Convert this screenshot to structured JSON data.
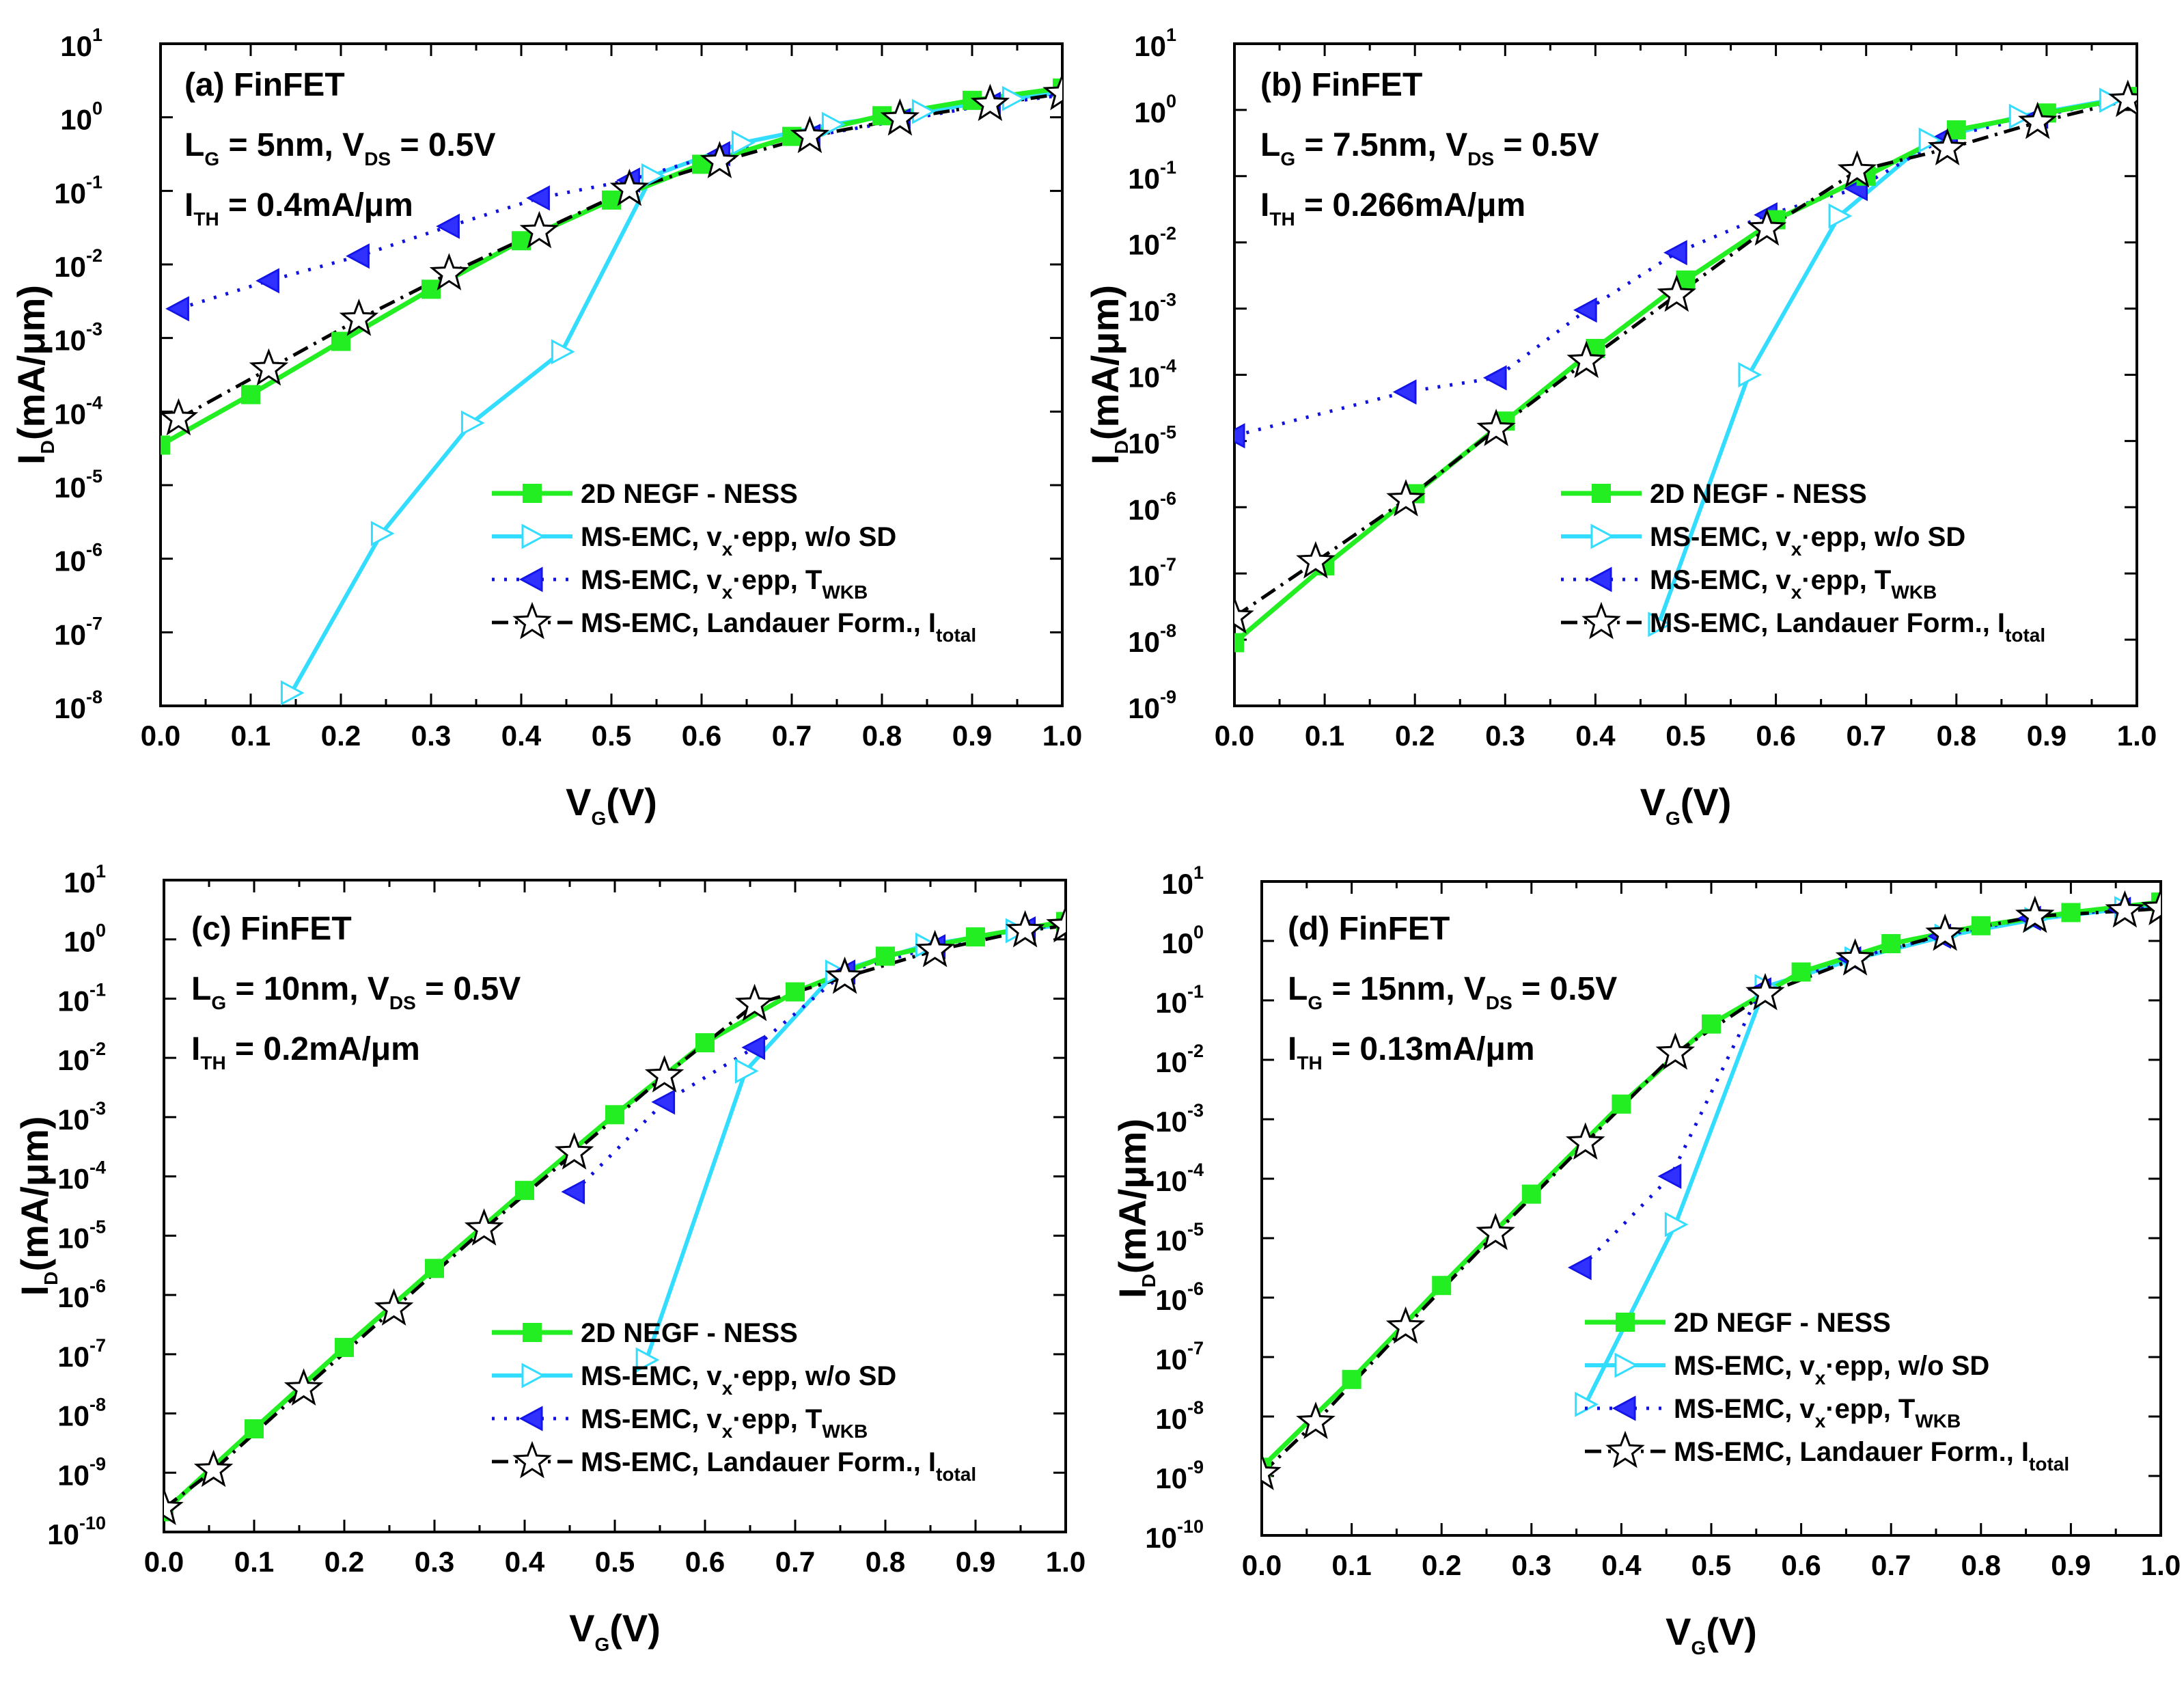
{
  "colors": {
    "negf": "#22ee22",
    "negf_marker": "#22ee22",
    "wosd": "#33ddff",
    "twkb": "#1111dd",
    "twkb_fill": "#1a1aff",
    "total": "#000000"
  },
  "common": {
    "x_label_main": "V",
    "x_label_sub": "G",
    "x_label_end": "(V)",
    "y_label_main": "I",
    "y_label_sub": "D",
    "y_label_end": "(mA/μm)",
    "x_ticks": [
      "0.0",
      "0.1",
      "0.2",
      "0.3",
      "0.4",
      "0.5",
      "0.6",
      "0.7",
      "0.8",
      "0.9",
      "1.0"
    ],
    "legend": [
      {
        "text": "2D NEGF - NESS",
        "sub": "",
        "tail": "",
        "sub2": "",
        "tail2": ""
      },
      {
        "text": "MS-EMC, v",
        "sub": "x",
        "tail": "·epp, w/o SD",
        "sub2": "",
        "tail2": ""
      },
      {
        "text": "MS-EMC, v",
        "sub": "x",
        "tail": "·epp, T",
        "sub2": "WKB",
        "tail2": ""
      },
      {
        "text": "MS-EMC, Landauer Form., I",
        "sub": "total",
        "tail": "",
        "sub2": "",
        "tail2": ""
      }
    ]
  },
  "chart_data": [
    {
      "type": "line",
      "title_line1": "(a) FinFET",
      "title_line2": {
        "a": "L",
        "a_sub": "G",
        "b": " = 5nm, V",
        "b_sub": "DS",
        "c": " = 0.5V"
      },
      "title_line3": {
        "a": "I",
        "a_sub": "TH",
        "b": " = 0.4mA/μm"
      },
      "xlim": [
        0,
        1
      ],
      "ylim_exp": [
        -8,
        1
      ],
      "y_ticks": [
        {
          "base": "10",
          "exp": "1"
        },
        {
          "base": "10",
          "exp": "0"
        },
        {
          "base": "10",
          "exp": "-1"
        },
        {
          "base": "10",
          "exp": "-2"
        },
        {
          "base": "10",
          "exp": "-3"
        },
        {
          "base": "10",
          "exp": "-4"
        },
        {
          "base": "10",
          "exp": "-5"
        },
        {
          "base": "10",
          "exp": "-6"
        },
        {
          "base": "10",
          "exp": "-7"
        },
        {
          "base": "10",
          "exp": "-8"
        }
      ],
      "series": [
        {
          "name": "2D NEGF - NESS",
          "x": [
            0,
            0.1,
            0.2,
            0.3,
            0.4,
            0.5,
            0.6,
            0.7,
            0.8,
            0.9,
            1.0
          ],
          "y": [
            3.5e-05,
            0.00017,
            0.0009,
            0.0046,
            0.021,
            0.075,
            0.23,
            0.55,
            1.05,
            1.7,
            2.5
          ]
        },
        {
          "name": "MS-EMC, vx·epp, w/o SD",
          "x": [
            0.145,
            0.245,
            0.345,
            0.445,
            0.545,
            0.645,
            0.745,
            0.845,
            0.945,
            1.0
          ],
          "y": [
            1.5e-08,
            2.2e-06,
            7e-05,
            0.00065,
            0.16,
            0.45,
            0.8,
            1.2,
            1.8,
            2.2
          ]
        },
        {
          "name": "MS-EMC, vx·epp, TWKB",
          "x": [
            0.02,
            0.12,
            0.22,
            0.32,
            0.42,
            0.52,
            0.62,
            0.72,
            0.82,
            0.92,
            1.0
          ],
          "y": [
            0.0025,
            0.006,
            0.013,
            0.033,
            0.08,
            0.14,
            0.32,
            0.55,
            0.9,
            1.5,
            2.0
          ]
        },
        {
          "name": "MS-EMC, Landauer Form., Itotal",
          "x": [
            0.02,
            0.12,
            0.22,
            0.32,
            0.42,
            0.52,
            0.62,
            0.72,
            0.82,
            0.92,
            1.0
          ],
          "y": [
            8e-05,
            0.00038,
            0.0018,
            0.0075,
            0.028,
            0.105,
            0.25,
            0.55,
            0.95,
            1.5,
            2.1
          ]
        }
      ]
    },
    {
      "type": "line",
      "title_line1": "(b) FinFET",
      "title_line2": {
        "a": "L",
        "a_sub": "G",
        "b": " = 7.5nm, V",
        "b_sub": "DS",
        "c": " = 0.5V"
      },
      "title_line3": {
        "a": "I",
        "a_sub": "TH",
        "b": " = 0.266mA/μm"
      },
      "xlim": [
        0,
        1
      ],
      "ylim_exp": [
        -9,
        1
      ],
      "y_ticks": [
        {
          "base": "10",
          "exp": "1"
        },
        {
          "base": "10",
          "exp": "0"
        },
        {
          "base": "10",
          "exp": "-1"
        },
        {
          "base": "10",
          "exp": "-2"
        },
        {
          "base": "10",
          "exp": "-3"
        },
        {
          "base": "10",
          "exp": "-4"
        },
        {
          "base": "10",
          "exp": "-5"
        },
        {
          "base": "10",
          "exp": "-6"
        },
        {
          "base": "10",
          "exp": "-7"
        },
        {
          "base": "10",
          "exp": "-8"
        },
        {
          "base": "10",
          "exp": "-9"
        }
      ],
      "series": [
        {
          "name": "2D NEGF - NESS",
          "x": [
            0,
            0.1,
            0.2,
            0.3,
            0.4,
            0.5,
            0.6,
            0.7,
            0.8,
            0.9,
            1.0
          ],
          "y": [
            9e-09,
            1.3e-07,
            1.6e-06,
            2e-05,
            0.00025,
            0.0027,
            0.022,
            0.1,
            0.5,
            0.9,
            1.6
          ]
        },
        {
          "name": "MS-EMC, vx·epp, w/o SD",
          "x": [
            0.47,
            0.57,
            0.67,
            0.77,
            0.87,
            0.97,
            1.0
          ],
          "y": [
            1.7e-08,
            0.0001,
            0.025,
            0.35,
            0.8,
            1.4,
            1.6
          ]
        },
        {
          "name": "MS-EMC, vx·epp, TWKB",
          "x": [
            0,
            0.19,
            0.29,
            0.39,
            0.49,
            0.59,
            0.69,
            0.79,
            0.89,
            0.99
          ],
          "y": [
            1.2e-05,
            5.5e-05,
            9e-05,
            0.00095,
            0.007,
            0.026,
            0.065,
            0.4,
            0.8,
            1.5
          ]
        },
        {
          "name": "MS-EMC, Landauer Form., Itotal",
          "x": [
            0,
            0.09,
            0.19,
            0.29,
            0.39,
            0.49,
            0.59,
            0.69,
            0.79,
            0.89,
            0.99
          ],
          "y": [
            2.2e-08,
            1.5e-07,
            1.3e-06,
            1.5e-05,
            0.00016,
            0.0016,
            0.016,
            0.12,
            0.26,
            0.65,
            1.4
          ]
        }
      ]
    },
    {
      "type": "line",
      "title_line1": "(c) FinFET",
      "title_line2": {
        "a": "L",
        "a_sub": "G",
        "b": " = 10nm, V",
        "b_sub": "DS",
        "c": " = 0.5V"
      },
      "title_line3": {
        "a": "I",
        "a_sub": "TH",
        "b": " = 0.2mA/μm"
      },
      "xlim": [
        0,
        1
      ],
      "ylim_exp": [
        -10,
        1
      ],
      "y_ticks": [
        {
          "base": "10",
          "exp": "1"
        },
        {
          "base": "10",
          "exp": "0"
        },
        {
          "base": "10",
          "exp": "-1"
        },
        {
          "base": "10",
          "exp": "-2"
        },
        {
          "base": "10",
          "exp": "-3"
        },
        {
          "base": "10",
          "exp": "-4"
        },
        {
          "base": "10",
          "exp": "-5"
        },
        {
          "base": "10",
          "exp": "-6"
        },
        {
          "base": "10",
          "exp": "-7"
        },
        {
          "base": "10",
          "exp": "-8"
        },
        {
          "base": "10",
          "exp": "-9"
        },
        {
          "base": "10",
          "exp": "-10"
        }
      ],
      "series": [
        {
          "name": "2D NEGF - NESS",
          "x": [
            0,
            0.1,
            0.2,
            0.3,
            0.4,
            0.5,
            0.6,
            0.7,
            0.8,
            0.9,
            1.0
          ],
          "y": [
            2.2e-10,
            5.5e-09,
            1.3e-07,
            2.8e-06,
            5.8e-05,
            0.0011,
            0.018,
            0.13,
            0.52,
            1.1,
            2.0
          ]
        },
        {
          "name": "MS-EMC, vx·epp, w/o SD",
          "x": [
            0.535,
            0.645,
            0.745,
            0.845,
            0.945,
            1.0
          ],
          "y": [
            8e-08,
            0.006,
            0.28,
            0.8,
            1.4,
            1.8
          ]
        },
        {
          "name": "MS-EMC, vx·epp, TWKB",
          "x": [
            0.455,
            0.555,
            0.655,
            0.755,
            0.855,
            0.955,
            1.0
          ],
          "y": [
            5.5e-05,
            0.0018,
            0.015,
            0.28,
            0.75,
            1.5,
            1.8
          ]
        },
        {
          "name": "MS-EMC, Landauer Form., Itotal",
          "x": [
            0,
            0.055,
            0.155,
            0.255,
            0.355,
            0.455,
            0.555,
            0.655,
            0.755,
            0.855,
            0.955,
            1.0
          ],
          "y": [
            2.5e-10,
            1.1e-09,
            2.6e-08,
            5.8e-07,
            1.3e-05,
            0.00025,
            0.005,
            0.08,
            0.23,
            0.65,
            1.4,
            1.7
          ]
        }
      ]
    },
    {
      "type": "line",
      "title_line1": "(d) FinFET",
      "title_line2": {
        "a": "L",
        "a_sub": "G",
        "b": " = 15nm, V",
        "b_sub": "DS",
        "c": " = 0.5V"
      },
      "title_line3": {
        "a": "I",
        "a_sub": "TH",
        "b": " = 0.13mA/μm"
      },
      "xlim": [
        0,
        1
      ],
      "ylim_exp": [
        -10,
        1
      ],
      "y_ticks": [
        {
          "base": "10",
          "exp": "1"
        },
        {
          "base": "10",
          "exp": "0"
        },
        {
          "base": "10",
          "exp": "-1"
        },
        {
          "base": "10",
          "exp": "-2"
        },
        {
          "base": "10",
          "exp": "-3"
        },
        {
          "base": "10",
          "exp": "-4"
        },
        {
          "base": "10",
          "exp": "-5"
        },
        {
          "base": "10",
          "exp": "-6"
        },
        {
          "base": "10",
          "exp": "-7"
        },
        {
          "base": "10",
          "exp": "-8"
        },
        {
          "base": "10",
          "exp": "-9"
        },
        {
          "base": "10",
          "exp": "-10"
        }
      ],
      "series": [
        {
          "name": "2D NEGF - NESS",
          "x": [
            0,
            0.1,
            0.2,
            0.3,
            0.4,
            0.5,
            0.6,
            0.7,
            0.8,
            0.9,
            1.0
          ],
          "y": [
            1.4e-09,
            4.2e-08,
            1.6e-06,
            5.5e-05,
            0.0018,
            0.04,
            0.3,
            0.9,
            1.8,
            3.0,
            4.5
          ]
        },
        {
          "name": "MS-EMC, vx·epp, w/o SD",
          "x": [
            0.36,
            0.46,
            0.56,
            0.66,
            0.76,
            0.86,
            0.96,
            1.0
          ],
          "y": [
            1.6e-08,
            1.7e-05,
            0.17,
            0.5,
            1.2,
            2.3,
            3.5,
            3.8
          ]
        },
        {
          "name": "MS-EMC, vx·epp, TWKB",
          "x": [
            0.355,
            0.455,
            0.555,
            0.655,
            0.755,
            0.855,
            0.955,
            1.0
          ],
          "y": [
            3.2e-06,
            0.00011,
            0.15,
            0.5,
            1.2,
            2.4,
            3.4,
            3.6
          ]
        },
        {
          "name": "MS-EMC, Landauer Form., Itotal",
          "x": [
            0,
            0.06,
            0.16,
            0.26,
            0.36,
            0.46,
            0.56,
            0.66,
            0.76,
            0.86,
            0.96,
            1.0
          ],
          "y": [
            1.1e-09,
            8e-09,
            3.2e-07,
            1.2e-05,
            0.0004,
            0.013,
            0.13,
            0.5,
            1.3,
            2.6,
            3.2,
            3.5
          ]
        }
      ]
    }
  ]
}
